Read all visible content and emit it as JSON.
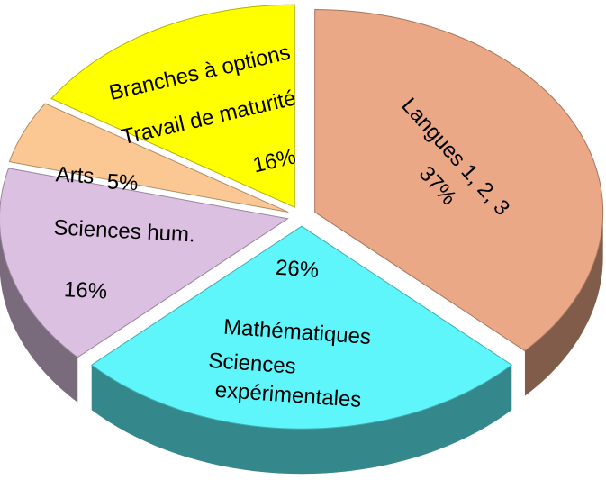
{
  "chart_data": {
    "type": "pie",
    "categories": [
      [
        "Langues 1, 2, 3"
      ],
      [
        "Mathématiques",
        "Sciences",
        "expérimentales"
      ],
      [
        "Sciences hum."
      ],
      [
        "Arts"
      ],
      [
        "Branches à options",
        "Travail de maturité"
      ]
    ],
    "values": [
      37,
      26,
      16,
      5,
      16
    ],
    "value_labels": [
      "37%",
      "26%",
      "16%",
      "5%",
      "16%"
    ],
    "colors": [
      "#eba887",
      "#5ef5fb",
      "#dcc0e2",
      "#fbc894",
      "#ffff00"
    ]
  }
}
